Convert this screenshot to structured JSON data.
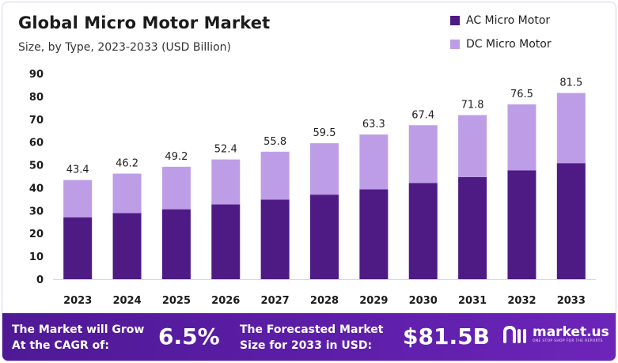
{
  "colors": {
    "ac": "#4e1a84",
    "dc": "#bd9ee6",
    "footer": "#5a1ca6"
  },
  "chart_data": {
    "type": "bar",
    "stacked": true,
    "title": "Global Micro Motor Market",
    "subtitle": "Size, by Type, 2023-2033 (USD Billion)",
    "xlabel": "",
    "ylabel": "",
    "ylim": [
      0,
      90
    ],
    "yticks": [
      0,
      10,
      20,
      30,
      40,
      50,
      60,
      70,
      80,
      90
    ],
    "grid": false,
    "legend_position": "top-right",
    "categories": [
      "2023",
      "2024",
      "2025",
      "2026",
      "2027",
      "2028",
      "2029",
      "2030",
      "2031",
      "2032",
      "2033"
    ],
    "series": [
      {
        "name": "AC Micro Motor",
        "values": [
          27.1,
          28.9,
          30.6,
          32.7,
          34.8,
          37.0,
          39.3,
          42.1,
          44.7,
          47.6,
          50.8
        ]
      },
      {
        "name": "DC Micro Motor",
        "values": [
          16.3,
          17.3,
          18.6,
          19.7,
          21.0,
          22.5,
          24.0,
          25.3,
          27.1,
          28.9,
          30.7
        ]
      }
    ],
    "totals": [
      "43.4",
      "46.2",
      "49.2",
      "52.4",
      "55.8",
      "59.5",
      "63.3",
      "67.4",
      "71.8",
      "76.5",
      "81.5"
    ]
  },
  "footer": {
    "cagr_label_line1": "The Market will Grow",
    "cagr_label_line2": "At the CAGR of:",
    "cagr_value": "6.5%",
    "forecast_label_line1": "The Forecasted Market",
    "forecast_label_line2": "Size for 2033 in USD:",
    "forecast_value": "$81.5B",
    "logo_icon": "market-us-logo-icon",
    "logo_name": "market.us",
    "logo_tagline": "ONE STOP SHOP FOR THE REPORTS"
  }
}
